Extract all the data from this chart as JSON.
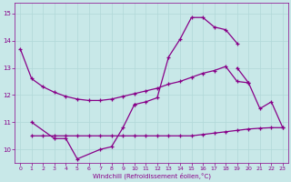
{
  "xlabel": "Windchill (Refroidissement éolien,°C)",
  "bg_color": "#c8e8e8",
  "grid_color": "#b0d8d8",
  "line_color": "#880088",
  "xlim": [
    -0.5,
    23.5
  ],
  "ylim": [
    9.5,
    15.4
  ],
  "xticks": [
    0,
    1,
    2,
    3,
    4,
    5,
    6,
    7,
    8,
    9,
    10,
    11,
    12,
    13,
    14,
    15,
    16,
    17,
    18,
    19,
    20,
    21,
    22,
    23
  ],
  "yticks": [
    10,
    11,
    12,
    13,
    14,
    15
  ],
  "series": [
    {
      "x": [
        0,
        1,
        2,
        3,
        4,
        5,
        6,
        7,
        8,
        9,
        10,
        11,
        12,
        13,
        14,
        15,
        16,
        17,
        18,
        19,
        20
      ],
      "y": [
        13.7,
        12.6,
        12.3,
        12.1,
        11.95,
        11.85,
        11.8,
        11.8,
        11.85,
        11.95,
        12.05,
        12.15,
        12.25,
        12.4,
        12.5,
        12.65,
        12.8,
        12.9,
        13.05,
        12.5,
        12.45
      ]
    },
    {
      "x": [
        1,
        2,
        3,
        4,
        5,
        6,
        7,
        8,
        9,
        10,
        11,
        12,
        13,
        14,
        15,
        16,
        17,
        18,
        19,
        20,
        21,
        22,
        23
      ],
      "y": [
        10.5,
        10.5,
        10.5,
        10.5,
        10.5,
        10.5,
        10.5,
        10.5,
        10.5,
        10.5,
        10.5,
        10.5,
        10.5,
        10.5,
        10.5,
        10.55,
        10.6,
        10.65,
        10.7,
        10.75,
        10.78,
        10.8,
        10.8
      ]
    },
    {
      "x": [
        1,
        3,
        4,
        5,
        7,
        8,
        9,
        10
      ],
      "y": [
        11.0,
        10.4,
        10.4,
        9.65,
        10.0,
        10.1,
        10.8,
        11.65
      ]
    },
    {
      "x": [
        10,
        11,
        12,
        13,
        14,
        15,
        16,
        17,
        18,
        19
      ],
      "y": [
        11.65,
        11.75,
        11.9,
        13.4,
        14.05,
        14.85,
        14.85,
        14.5,
        14.4,
        13.9
      ]
    },
    {
      "x": [
        19,
        20,
        21,
        22,
        23
      ],
      "y": [
        13.0,
        12.45,
        11.5,
        11.75,
        10.8
      ]
    }
  ]
}
